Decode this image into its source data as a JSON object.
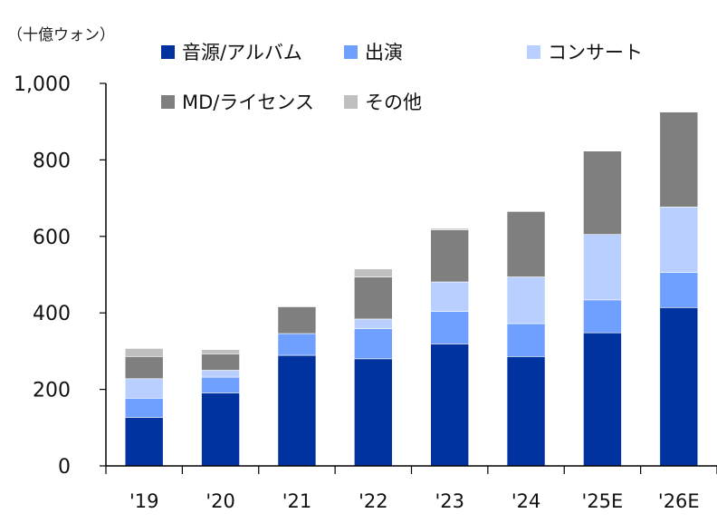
{
  "chart_data": {
    "type": "bar",
    "stacked": true,
    "unit_label": "（十億ウォン）",
    "categories": [
      "'19",
      "'20",
      "'21",
      "'22",
      "'23",
      "'24",
      "'25E",
      "'26E"
    ],
    "series": [
      {
        "name": "音源/アルバム",
        "color": "#0033A0",
        "values": [
          127,
          191,
          289,
          280,
          319,
          286,
          348,
          414
        ]
      },
      {
        "name": "出演",
        "color": "#70A0FF",
        "values": [
          50,
          41,
          57,
          79,
          85,
          86,
          86,
          92
        ]
      },
      {
        "name": "コンサート",
        "color": "#B8CFFF",
        "values": [
          51,
          18,
          0,
          25,
          77,
          122,
          171,
          171
        ]
      },
      {
        "name": "MD/ライセンス",
        "color": "#7F7F7F",
        "values": [
          58,
          43,
          70,
          110,
          136,
          171,
          218,
          248
        ]
      },
      {
        "name": "その他",
        "color": "#BFBFBF",
        "values": [
          21,
          11,
          2,
          21,
          4,
          0,
          0,
          0
        ]
      }
    ],
    "ylim": [
      0,
      1000
    ],
    "yticks": [
      "0",
      "200",
      "400",
      "600",
      "800",
      "1,000"
    ],
    "ytick_values": [
      0,
      200,
      400,
      600,
      800,
      1000
    ],
    "grid": false,
    "legend_position": "top"
  }
}
